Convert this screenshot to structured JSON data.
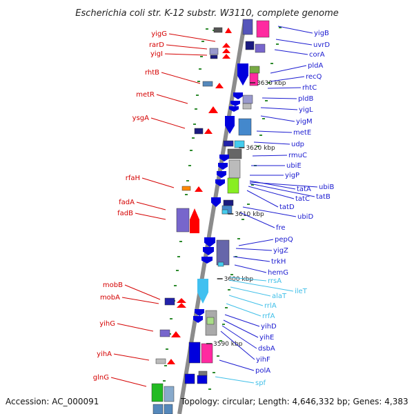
{
  "title": "Escherichia coli str. K-12 substr. W3110, complete genome",
  "footer": {
    "accession": "Accession: AC_000091",
    "summary": "Topology: circular; Length: 4,646,332 bp; Genes: 4,383"
  },
  "colors": {
    "backbone": "#8c8c8c",
    "left_strand_label": "#d40000",
    "right_strand_label": "#1a1ad0",
    "rna_label": "#3fbfe8",
    "forward_gene": "#ff0000",
    "reverse_gene": "#0000dd",
    "rna_gene": "#40c0f0",
    "tick": "#2e8b2e"
  },
  "positions": [
    {
      "label": "3630 kbp"
    },
    {
      "label": "3620 kbp"
    },
    {
      "label": "3610 kbp"
    },
    {
      "label": "3600 kbp"
    },
    {
      "label": "3590 kbp"
    }
  ],
  "left_labels": [
    {
      "name": "yigG"
    },
    {
      "name": "rarD"
    },
    {
      "name": "yigI"
    },
    {
      "name": "rhtB"
    },
    {
      "name": "metR"
    },
    {
      "name": "ysgA"
    },
    {
      "name": "rfaH"
    },
    {
      "name": "fadA"
    },
    {
      "name": "fadB"
    },
    {
      "name": "mobB"
    },
    {
      "name": "mobA"
    },
    {
      "name": "yihG"
    },
    {
      "name": "yihA"
    },
    {
      "name": "glnG"
    }
  ],
  "right_labels": [
    {
      "name": "yigB",
      "rna": false
    },
    {
      "name": "uvrD",
      "rna": false
    },
    {
      "name": "corA",
      "rna": false
    },
    {
      "name": "pldA",
      "rna": false
    },
    {
      "name": "recQ",
      "rna": false
    },
    {
      "name": "rhtC",
      "rna": false
    },
    {
      "name": "pldB",
      "rna": false
    },
    {
      "name": "yigL",
      "rna": false
    },
    {
      "name": "yigM",
      "rna": false
    },
    {
      "name": "metE",
      "rna": false
    },
    {
      "name": "udp",
      "rna": false
    },
    {
      "name": "rmuC",
      "rna": false
    },
    {
      "name": "ubiE",
      "rna": false
    },
    {
      "name": "yigP",
      "rna": false
    },
    {
      "name": "tatA",
      "rna": false
    },
    {
      "name": "ubiB",
      "rna": false
    },
    {
      "name": "tatB",
      "rna": false
    },
    {
      "name": "tatC",
      "rna": false
    },
    {
      "name": "tatD",
      "rna": false
    },
    {
      "name": "ubiD",
      "rna": false
    },
    {
      "name": "fre",
      "rna": false
    },
    {
      "name": "pepQ",
      "rna": false
    },
    {
      "name": "yigZ",
      "rna": false
    },
    {
      "name": "trkH",
      "rna": false
    },
    {
      "name": "hemG",
      "rna": false
    },
    {
      "name": "rrsA",
      "rna": true
    },
    {
      "name": "ileT",
      "rna": true
    },
    {
      "name": "alaT",
      "rna": true
    },
    {
      "name": "rrlA",
      "rna": true
    },
    {
      "name": "rrfA",
      "rna": true
    },
    {
      "name": "yihD",
      "rna": false
    },
    {
      "name": "yihE",
      "rna": false
    },
    {
      "name": "dsbA",
      "rna": false
    },
    {
      "name": "yihF",
      "rna": false
    },
    {
      "name": "polA",
      "rna": false
    },
    {
      "name": "spf",
      "rna": true
    }
  ]
}
